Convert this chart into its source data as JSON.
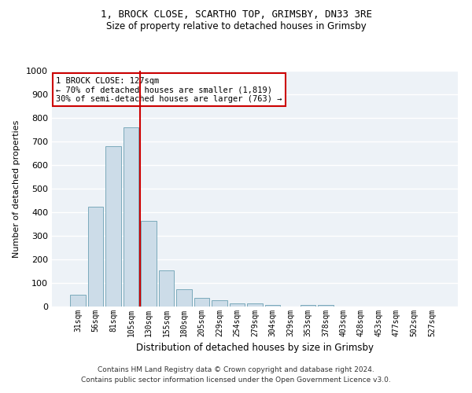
{
  "title1": "1, BROCK CLOSE, SCARTHO TOP, GRIMSBY, DN33 3RE",
  "title2": "Size of property relative to detached houses in Grimsby",
  "xlabel": "Distribution of detached houses by size in Grimsby",
  "ylabel": "Number of detached properties",
  "categories": [
    "31sqm",
    "56sqm",
    "81sqm",
    "105sqm",
    "130sqm",
    "155sqm",
    "180sqm",
    "205sqm",
    "229sqm",
    "254sqm",
    "279sqm",
    "304sqm",
    "329sqm",
    "353sqm",
    "378sqm",
    "403sqm",
    "428sqm",
    "453sqm",
    "477sqm",
    "502sqm",
    "527sqm"
  ],
  "values": [
    50,
    422,
    680,
    760,
    365,
    155,
    75,
    38,
    27,
    15,
    13,
    8,
    0,
    8,
    8,
    0,
    0,
    0,
    0,
    0,
    0
  ],
  "bar_color": "#ccdce8",
  "bar_edge_color": "#7aaabb",
  "vline_color": "#cc0000",
  "annotation_line1": "1 BROCK CLOSE: 127sqm",
  "annotation_line2": "← 70% of detached houses are smaller (1,819)",
  "annotation_line3": "30% of semi-detached houses are larger (763) →",
  "annotation_box_color": "#cc0000",
  "ylim": [
    0,
    1000
  ],
  "yticks": [
    0,
    100,
    200,
    300,
    400,
    500,
    600,
    700,
    800,
    900,
    1000
  ],
  "footer1": "Contains HM Land Registry data © Crown copyright and database right 2024.",
  "footer2": "Contains public sector information licensed under the Open Government Licence v3.0.",
  "plot_bg_color": "#edf2f7"
}
